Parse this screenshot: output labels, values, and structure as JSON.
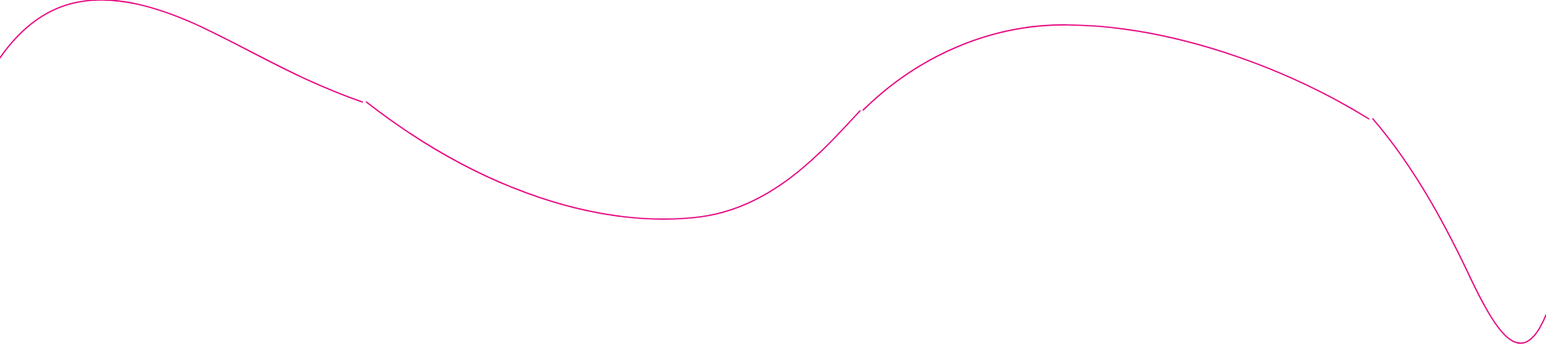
{
  "decoration": {
    "type": "wave-line",
    "stroke_color": "#e6007e",
    "background_color": "#ffffff",
    "segment_count": 4
  }
}
